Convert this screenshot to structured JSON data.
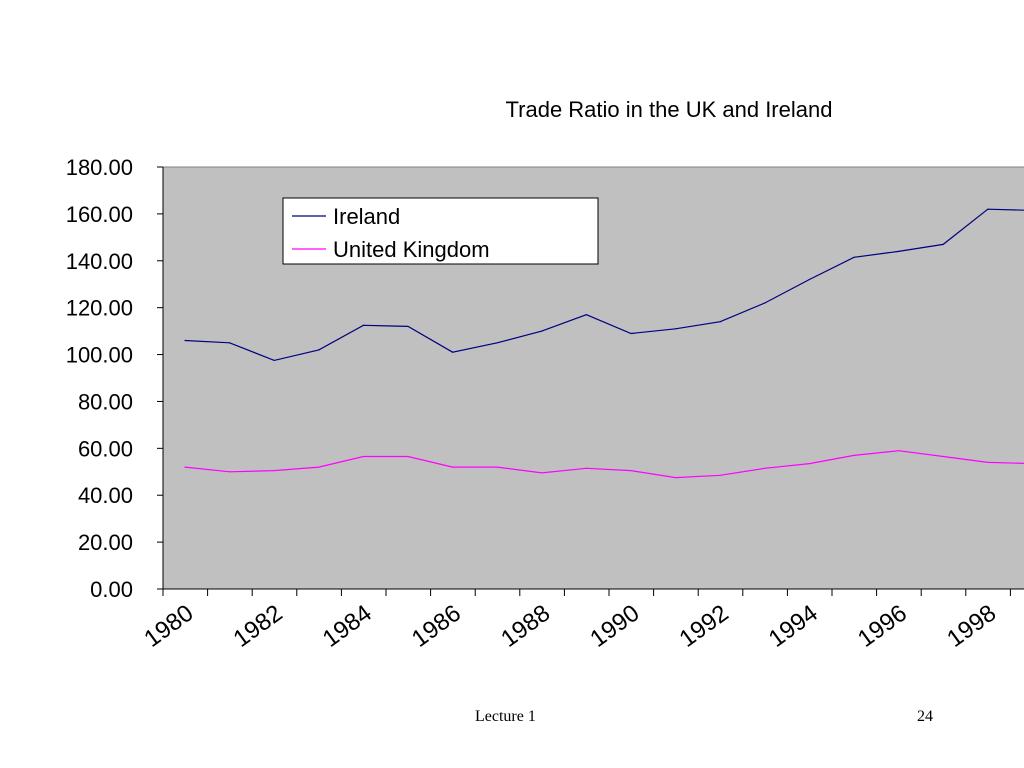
{
  "chart_data": {
    "type": "line",
    "title": "Trade Ratio in the UK and Ireland",
    "xlabel": "",
    "ylabel": "",
    "ylim": [
      0,
      180
    ],
    "y_ticks": [
      "0.00",
      "20.00",
      "40.00",
      "60.00",
      "80.00",
      "100.00",
      "120.00",
      "140.00",
      "160.00",
      "180.00"
    ],
    "x_tick_labels": [
      "1980",
      "1982",
      "1984",
      "1986",
      "1988",
      "1990",
      "1992",
      "1994",
      "1996",
      "1998"
    ],
    "x": [
      1980,
      1981,
      1982,
      1983,
      1984,
      1985,
      1986,
      1987,
      1988,
      1989,
      1990,
      1991,
      1992,
      1993,
      1994,
      1995,
      1996,
      1997,
      1998,
      1999
    ],
    "grid": false,
    "plot_background": "#c0c0c0",
    "legend_position": "top-left",
    "series": [
      {
        "name": "Ireland",
        "color": "#000080",
        "values": [
          106,
          105,
          97.5,
          102,
          112.5,
          112,
          101,
          105,
          110,
          117,
          109,
          111,
          114,
          122,
          132,
          141.5,
          144,
          147,
          162,
          161.5
        ]
      },
      {
        "name": "United Kingdom",
        "color": "#ff00ff",
        "values": [
          52,
          50,
          50.5,
          52,
          56.5,
          56.5,
          52,
          52,
          49.5,
          51.5,
          50.5,
          47.5,
          48.5,
          51.5,
          53.5,
          57,
          59,
          56.5,
          54,
          53.5
        ]
      }
    ]
  },
  "footer": {
    "left": "Lecture 1",
    "right": "24"
  }
}
